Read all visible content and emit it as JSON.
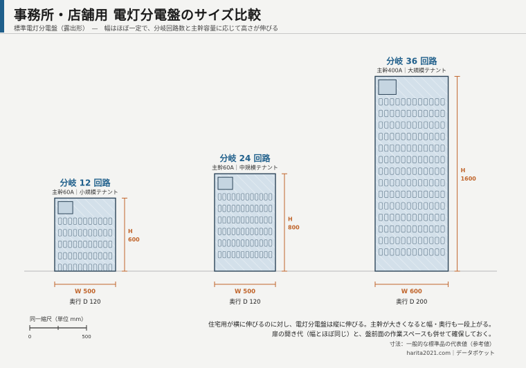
{
  "header": {
    "title": "事務所・店舗用 電灯分電盤のサイズ比較",
    "subtitle": "標準電灯分電盤（露出形）　—　幅はほぼ一定で、分岐回路数と主幹容量に応じて高さが伸びる"
  },
  "panels": [
    {
      "name": "分岐 12 回路",
      "spec": "主幹60A｜小規模テナント",
      "width_label": "W 500",
      "height_label": "H",
      "height_value": "600",
      "depth_label": "奥行 D 120",
      "width_mm": 500,
      "height_mm": 600,
      "breaker_rows": 5,
      "breaker_cols": 11
    },
    {
      "name": "分岐 24 回路",
      "spec": "主幹60A｜中規模テナント",
      "width_label": "W 500",
      "height_label": "H",
      "height_value": "800",
      "depth_label": "奥行 D 120",
      "width_mm": 500,
      "height_mm": 800,
      "breaker_rows": 6,
      "breaker_cols": 12
    },
    {
      "name": "分岐 36 回路",
      "spec": "主幹400A｜大規模テナント",
      "width_label": "W 600",
      "height_label": "H",
      "height_value": "1600",
      "depth_label": "奥行 D 200",
      "width_mm": 600,
      "height_mm": 1600,
      "breaker_rows": 14,
      "breaker_cols": 12
    }
  ],
  "scale": {
    "label": "同一縮尺（単位 mm）",
    "min": "0",
    "max": "500"
  },
  "notes": {
    "line1": "住宅用が横に伸びるのに対し、電灯分電盤は縦に伸びる。主幹が大きくなると幅・奥行も一段上がる。",
    "line2": "扉の開き代（幅とほぼ同じ）と、盤前面の作業スペースも併せて確保しておく。",
    "source": "寸法：一般的な標準品の代表値（参考値）",
    "credit": "harita2021.com｜データポケット"
  },
  "colors": {
    "accent": "#1f5f8b",
    "dimension": "#c0642a",
    "panel_fill": "#d3e0ea",
    "panel_stroke": "#2d4559"
  }
}
